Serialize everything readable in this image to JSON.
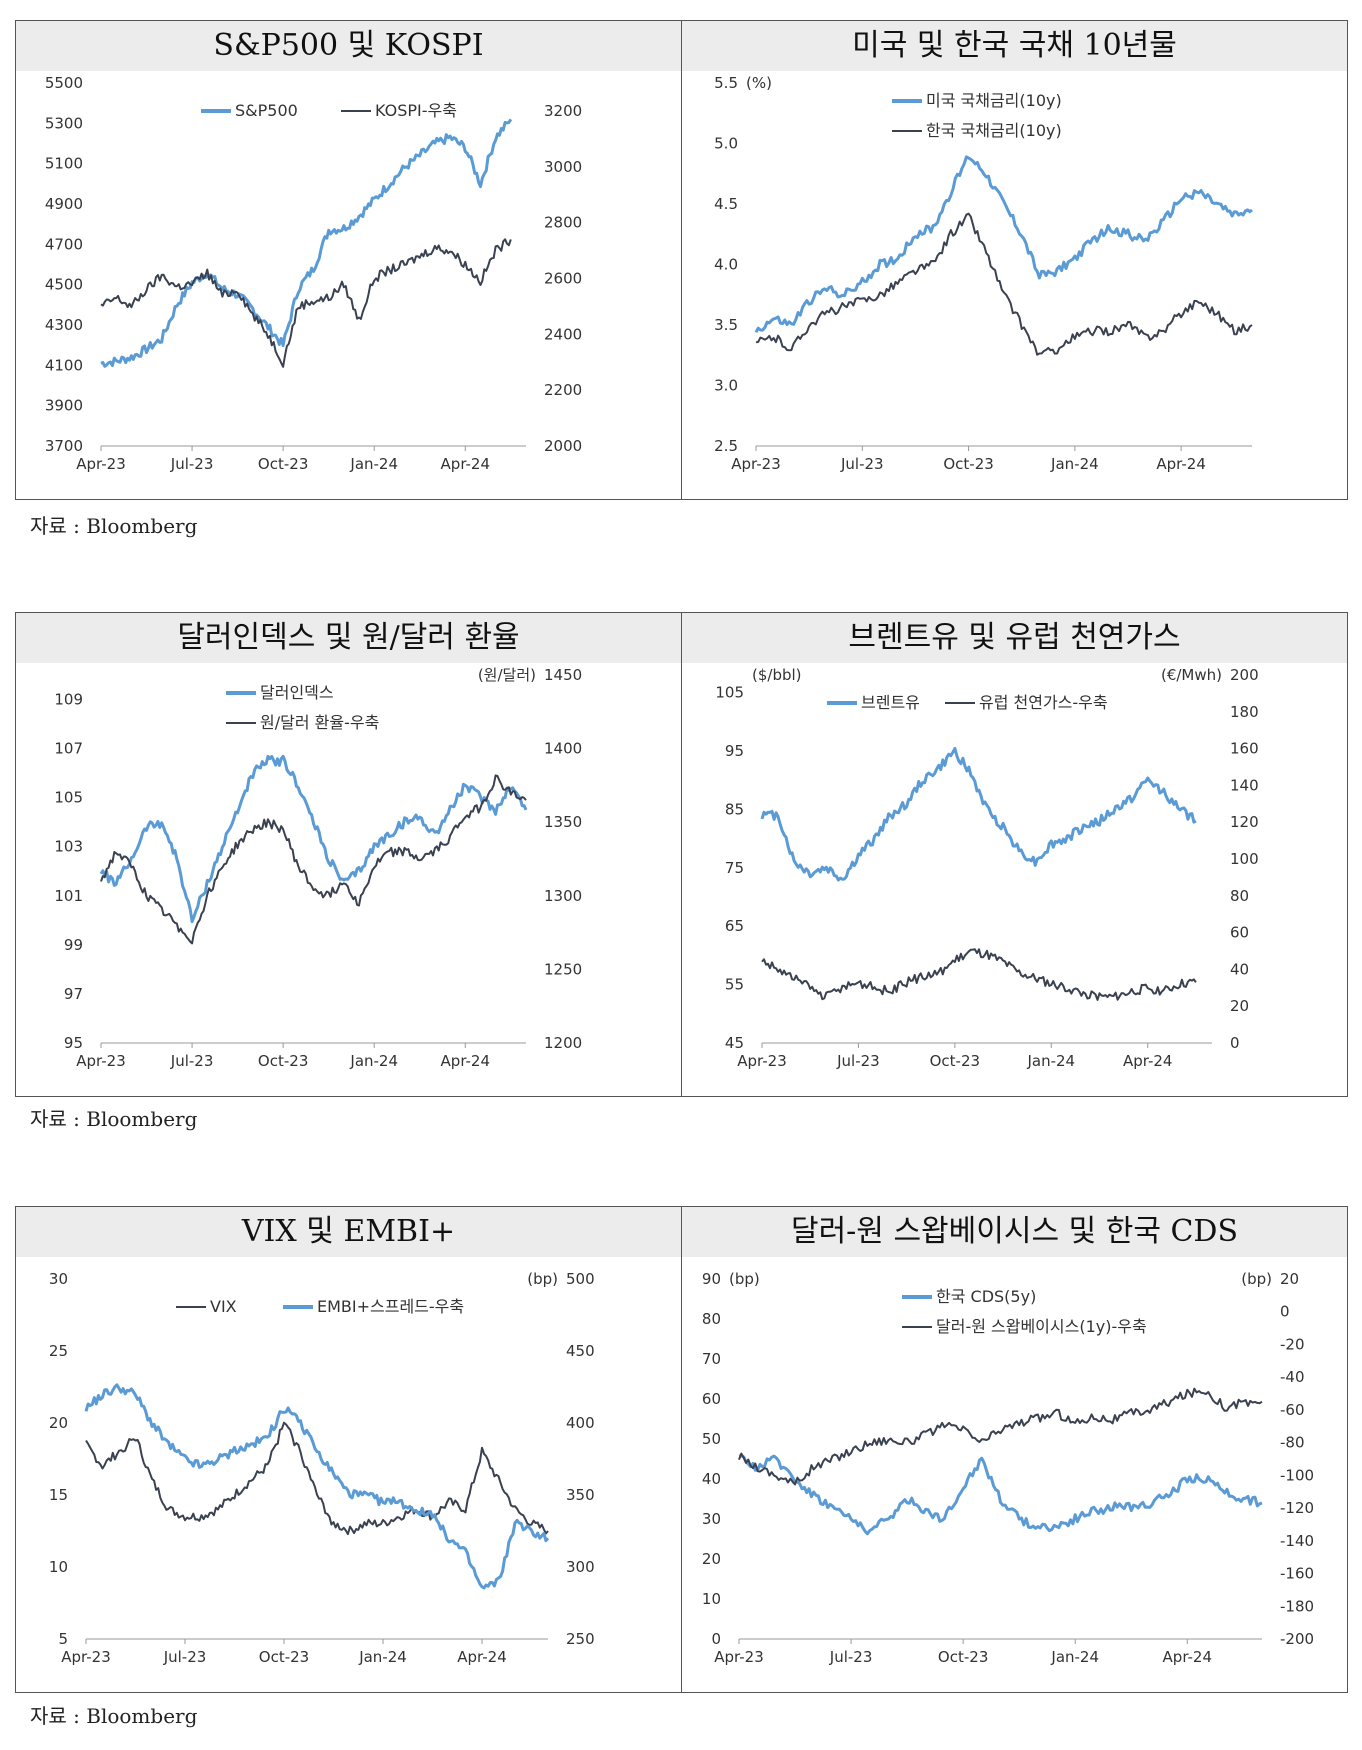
{
  "colors": {
    "blue": "#5b9bd5",
    "dark": "#3a4150",
    "axis": "#999999",
    "text": "#333333"
  },
  "sources": [
    "자료 : Bloomberg",
    "자료 : Bloomberg",
    "자료 : Bloomberg"
  ],
  "chart_data": [
    {
      "type": "line",
      "title": "S&P500 및 KOSPI",
      "x_ticks": [
        "Apr-23",
        "Jul-23",
        "Oct-23",
        "Jan-24",
        "Apr-24"
      ],
      "x_range": [
        0,
        14
      ],
      "left_axis": {
        "ticks": [
          "5500",
          "5300",
          "5100",
          "4900",
          "4700",
          "4500",
          "4300",
          "4100",
          "3900",
          "3700"
        ],
        "range": [
          3700,
          5500
        ],
        "unit": ""
      },
      "right_axis": {
        "ticks": [
          "3200",
          "3000",
          "2800",
          "2600",
          "2400",
          "2200",
          "2000"
        ],
        "range": [
          2000,
          3300
        ],
        "unit": ""
      },
      "legend": [
        {
          "label": "S&P500",
          "color": "blue",
          "axis": "left"
        },
        {
          "label": "KOSPI-우축",
          "color": "dark",
          "axis": "right"
        }
      ],
      "series": [
        {
          "name": "S&P500",
          "axis": "left",
          "color": "blue",
          "x": [
            0,
            0.5,
            1,
            1.5,
            2,
            2.5,
            3,
            3.5,
            4,
            4.5,
            5,
            5.5,
            6,
            6.5,
            7,
            7.5,
            8,
            8.5,
            9,
            9.5,
            10,
            10.5,
            11,
            11.5,
            12,
            12.5,
            13,
            13.5
          ],
          "values": [
            4110,
            4120,
            4140,
            4180,
            4230,
            4400,
            4510,
            4560,
            4480,
            4450,
            4380,
            4290,
            4200,
            4480,
            4580,
            4770,
            4780,
            4840,
            4920,
            5000,
            5080,
            5140,
            5200,
            5230,
            5180,
            5000,
            5230,
            5320
          ]
        },
        {
          "name": "KOSPI",
          "axis": "right",
          "color": "dark",
          "x": [
            0,
            0.5,
            1,
            1.5,
            2,
            2.5,
            3,
            3.5,
            4,
            4.5,
            5,
            5.5,
            6,
            6.5,
            7,
            7.5,
            8,
            8.5,
            9,
            9.5,
            10,
            10.5,
            11,
            11.5,
            12,
            12.5,
            13,
            13.5
          ],
          "values": [
            2500,
            2530,
            2500,
            2560,
            2610,
            2570,
            2580,
            2620,
            2540,
            2560,
            2470,
            2400,
            2300,
            2500,
            2520,
            2530,
            2580,
            2450,
            2600,
            2630,
            2650,
            2680,
            2710,
            2700,
            2650,
            2590,
            2700,
            2740
          ]
        }
      ]
    },
    {
      "type": "line",
      "title": "미국 및 한국 국채 10년물",
      "x_ticks": [
        "Apr-23",
        "Jul-23",
        "Oct-23",
        "Jan-24",
        "Apr-24"
      ],
      "x_range": [
        0,
        14
      ],
      "left_axis": {
        "ticks": [
          "5.5",
          "5.0",
          "4.5",
          "4.0",
          "3.5",
          "3.0",
          "2.5"
        ],
        "range": [
          2.5,
          5.5
        ],
        "unit": "(%)"
      },
      "legend": [
        {
          "label": "미국 국채금리(10y)",
          "color": "blue",
          "axis": "left"
        },
        {
          "label": "한국 국채금리(10y)",
          "color": "dark",
          "axis": "left"
        }
      ],
      "series": [
        {
          "name": "미국 국채금리(10y)",
          "axis": "left",
          "color": "blue",
          "x": [
            0,
            0.5,
            1,
            1.5,
            2,
            2.5,
            3,
            3.5,
            4,
            4.5,
            5,
            5.5,
            6,
            6.5,
            7,
            7.5,
            8,
            8.5,
            9,
            9.5,
            10,
            10.5,
            11,
            11.5,
            12,
            12.5,
            13,
            13.5,
            14
          ],
          "values": [
            3.45,
            3.55,
            3.5,
            3.7,
            3.8,
            3.75,
            3.85,
            4.0,
            4.05,
            4.25,
            4.3,
            4.6,
            4.9,
            4.75,
            4.5,
            4.25,
            3.9,
            3.95,
            4.05,
            4.2,
            4.3,
            4.25,
            4.2,
            4.35,
            4.55,
            4.6,
            4.5,
            4.4,
            4.45
          ]
        },
        {
          "name": "한국 국채금리(10y)",
          "axis": "left",
          "color": "dark",
          "x": [
            0,
            0.5,
            1,
            1.5,
            2,
            2.5,
            3,
            3.5,
            4,
            4.5,
            5,
            5.5,
            6,
            6.5,
            7,
            7.5,
            8,
            8.5,
            9,
            9.5,
            10,
            10.5,
            11,
            11.5,
            12,
            12.5,
            13,
            13.5,
            14
          ],
          "values": [
            3.35,
            3.4,
            3.3,
            3.5,
            3.6,
            3.65,
            3.7,
            3.75,
            3.85,
            3.95,
            4.0,
            4.25,
            4.4,
            4.1,
            3.75,
            3.5,
            3.25,
            3.3,
            3.4,
            3.45,
            3.45,
            3.5,
            3.4,
            3.45,
            3.6,
            3.7,
            3.6,
            3.45,
            3.5
          ]
        }
      ]
    },
    {
      "type": "line",
      "title": "달러인덱스 및 원/달러 환율",
      "x_ticks": [
        "Apr-23",
        "Jul-23",
        "Oct-23",
        "Jan-24",
        "Apr-24"
      ],
      "x_range": [
        0,
        14
      ],
      "left_axis": {
        "ticks": [
          "109",
          "107",
          "105",
          "103",
          "101",
          "99",
          "97",
          "95"
        ],
        "range": [
          95,
          110
        ],
        "unit": ""
      },
      "right_axis": {
        "ticks": [
          "1450",
          "1400",
          "1350",
          "1300",
          "1250",
          "1200"
        ],
        "range": [
          1200,
          1450
        ],
        "unit": "(원/달러)"
      },
      "legend": [
        {
          "label": "달러인덱스",
          "color": "blue",
          "axis": "left"
        },
        {
          "label": "원/달러 환율-우축",
          "color": "dark",
          "axis": "right"
        }
      ],
      "series": [
        {
          "name": "달러인덱스",
          "axis": "left",
          "color": "blue",
          "x": [
            0,
            0.5,
            1,
            1.5,
            2,
            2.5,
            3,
            3.5,
            4,
            4.5,
            5,
            5.5,
            6,
            6.5,
            7,
            7.5,
            8,
            8.5,
            9,
            9.5,
            10,
            10.5,
            11,
            11.5,
            12,
            12.5,
            13,
            13.5,
            14
          ],
          "values": [
            102.0,
            101.5,
            102.5,
            103.8,
            104.0,
            102.5,
            100.0,
            101.5,
            103.0,
            104.5,
            106.0,
            106.5,
            106.5,
            105.5,
            104.0,
            102.5,
            101.5,
            102.0,
            103.0,
            103.5,
            104.0,
            104.2,
            103.5,
            104.5,
            105.5,
            105.0,
            104.5,
            105.5,
            104.5
          ]
        },
        {
          "name": "원/달러 환율",
          "axis": "right",
          "color": "dark",
          "x": [
            0,
            0.5,
            1,
            1.5,
            2,
            2.5,
            3,
            3.5,
            4,
            4.5,
            5,
            5.5,
            6,
            6.5,
            7,
            7.5,
            8,
            8.5,
            9,
            9.5,
            10,
            10.5,
            11,
            11.5,
            12,
            12.5,
            13,
            13.5,
            14
          ],
          "values": [
            1310,
            1330,
            1320,
            1300,
            1290,
            1280,
            1270,
            1300,
            1320,
            1335,
            1345,
            1350,
            1345,
            1320,
            1305,
            1300,
            1310,
            1295,
            1320,
            1330,
            1330,
            1325,
            1330,
            1340,
            1355,
            1360,
            1380,
            1370,
            1365
          ]
        }
      ]
    },
    {
      "type": "line",
      "title": "브렌트유 및 유럽 천연가스",
      "x_ticks": [
        "Apr-23",
        "Jul-23",
        "Oct-23",
        "Jan-24",
        "Apr-24"
      ],
      "x_range": [
        0,
        14
      ],
      "left_axis": {
        "ticks": [
          "105",
          "95",
          "85",
          "75",
          "65",
          "55",
          "45"
        ],
        "range": [
          45,
          108
        ],
        "unit": "($/bbl)"
      },
      "right_axis": {
        "ticks": [
          "200",
          "180",
          "160",
          "140",
          "120",
          "100",
          "80",
          "60",
          "40",
          "20",
          "0"
        ],
        "range": [
          0,
          200
        ],
        "unit": "(€/Mwh)"
      },
      "legend": [
        {
          "label": "브렌트유",
          "color": "blue",
          "axis": "left"
        },
        {
          "label": "유럽 천연가스-우축",
          "color": "dark",
          "axis": "right"
        }
      ],
      "series": [
        {
          "name": "브렌트유",
          "axis": "left",
          "color": "blue",
          "x": [
            0,
            0.5,
            1,
            1.5,
            2,
            2.5,
            3,
            3.5,
            4,
            4.5,
            5,
            5.5,
            6,
            6.5,
            7,
            7.5,
            8,
            8.5,
            9,
            9.5,
            10,
            10.5,
            11,
            11.5,
            12,
            12.5,
            13,
            13.5
          ],
          "values": [
            84,
            84,
            76,
            74,
            75,
            73,
            77,
            80,
            84,
            86,
            90,
            92,
            95,
            91,
            85,
            82,
            78,
            76,
            79,
            80,
            82,
            83,
            85,
            87,
            90,
            88,
            85,
            83
          ]
        },
        {
          "name": "유럽 천연가스",
          "axis": "right",
          "color": "dark",
          "x": [
            0,
            0.5,
            1,
            1.5,
            2,
            2.5,
            3,
            3.5,
            4,
            4.5,
            5,
            5.5,
            6,
            6.5,
            7,
            7.5,
            8,
            8.5,
            9,
            9.5,
            10,
            10.5,
            11,
            11.5,
            12,
            12.5,
            13,
            13.5
          ],
          "values": [
            45,
            40,
            35,
            30,
            25,
            30,
            33,
            30,
            28,
            33,
            36,
            38,
            45,
            50,
            48,
            44,
            38,
            35,
            32,
            30,
            27,
            25,
            25,
            28,
            30,
            28,
            32,
            33
          ]
        }
      ]
    },
    {
      "type": "line",
      "title": "VIX 및 EMBI+",
      "x_ticks": [
        "Apr-23",
        "Jul-23",
        "Oct-23",
        "Jan-24",
        "Apr-24"
      ],
      "x_range": [
        0,
        14
      ],
      "left_axis": {
        "ticks": [
          "30",
          "25",
          "20",
          "15",
          "10",
          "5"
        ],
        "range": [
          5,
          30
        ],
        "unit": ""
      },
      "right_axis": {
        "ticks": [
          "500",
          "450",
          "400",
          "350",
          "300",
          "250"
        ],
        "range": [
          250,
          500
        ],
        "unit": "(bp)"
      },
      "legend": [
        {
          "label": "VIX",
          "color": "dark",
          "axis": "left"
        },
        {
          "label": "EMBI+스프레드-우축",
          "color": "blue",
          "axis": "right"
        }
      ],
      "series": [
        {
          "name": "VIX",
          "axis": "left",
          "color": "dark",
          "x": [
            0,
            0.5,
            1,
            1.5,
            2,
            2.5,
            3,
            3.5,
            4,
            4.5,
            5,
            5.5,
            6,
            6.5,
            7,
            7.5,
            8,
            8.5,
            9,
            9.5,
            10,
            10.5,
            11,
            11.5,
            12,
            12.5,
            13,
            13.5,
            14
          ],
          "values": [
            18.5,
            17,
            18,
            19,
            16,
            14,
            13.5,
            13.5,
            14,
            15,
            16,
            17,
            20,
            18,
            15,
            13,
            12.5,
            13,
            13,
            13.5,
            14,
            13.5,
            14.5,
            14,
            18,
            16,
            14,
            13,
            12.5
          ]
        },
        {
          "name": "EMBI+스프레드",
          "axis": "right",
          "color": "blue",
          "x": [
            0,
            0.5,
            1,
            1.5,
            2,
            2.5,
            3,
            3.5,
            4,
            4.5,
            5,
            5.5,
            6,
            6.5,
            7,
            7.5,
            8,
            8.5,
            9,
            9.5,
            10,
            10.5,
            11,
            11.5,
            12,
            12.5,
            13,
            13.5,
            14
          ],
          "values": [
            410,
            420,
            425,
            420,
            400,
            385,
            375,
            370,
            375,
            380,
            385,
            390,
            410,
            400,
            380,
            365,
            350,
            350,
            345,
            345,
            340,
            335,
            320,
            310,
            285,
            290,
            330,
            325,
            320
          ]
        }
      ]
    },
    {
      "type": "line",
      "title": "달러-원 스왑베이시스 및 한국 CDS",
      "x_ticks": [
        "Apr-23",
        "Jul-23",
        "Oct-23",
        "Jan-24",
        "Apr-24"
      ],
      "x_range": [
        0,
        14
      ],
      "left_axis": {
        "ticks": [
          "90",
          "80",
          "70",
          "60",
          "50",
          "40",
          "30",
          "20",
          "10",
          "0"
        ],
        "range": [
          0,
          90
        ],
        "unit": "(bp)"
      },
      "right_axis": {
        "ticks": [
          "20",
          "0",
          "-20",
          "-40",
          "-60",
          "-80",
          "-100",
          "-120",
          "-140",
          "-160",
          "-180",
          "-200"
        ],
        "range": [
          -200,
          20
        ],
        "unit": "(bp)"
      },
      "legend": [
        {
          "label": "한국 CDS(5y)",
          "color": "blue",
          "axis": "left"
        },
        {
          "label": "달러-원 스왑베이시스(1y)-우축",
          "color": "dark",
          "axis": "right"
        }
      ],
      "series": [
        {
          "name": "한국 CDS(5y)",
          "axis": "left",
          "color": "blue",
          "x": [
            0,
            0.5,
            1,
            1.5,
            2,
            2.5,
            3,
            3.5,
            4,
            4.5,
            5,
            5.5,
            6,
            6.5,
            7,
            7.5,
            8,
            8.5,
            9,
            9.5,
            10,
            10.5,
            11,
            11.5,
            12,
            12.5,
            13,
            13.5,
            14
          ],
          "values": [
            45,
            43,
            45,
            40,
            36,
            33,
            30,
            27,
            30,
            35,
            32,
            30,
            38,
            45,
            35,
            30,
            28,
            28,
            30,
            32,
            33,
            33,
            34,
            36,
            40,
            40,
            37,
            35,
            34
          ]
        },
        {
          "name": "달러-원 스왑베이시스(1y)",
          "axis": "right",
          "color": "dark",
          "x": [
            0,
            0.5,
            1,
            1.5,
            2,
            2.5,
            3,
            3.5,
            4,
            4.5,
            5,
            5.5,
            6,
            6.5,
            7,
            7.5,
            8,
            8.5,
            9,
            9.5,
            10,
            10.5,
            11,
            11.5,
            12,
            12.5,
            13,
            13.5,
            14
          ],
          "values": [
            -88,
            -95,
            -100,
            -105,
            -95,
            -90,
            -85,
            -80,
            -78,
            -80,
            -75,
            -70,
            -72,
            -80,
            -72,
            -68,
            -65,
            -62,
            -68,
            -64,
            -66,
            -62,
            -60,
            -55,
            -50,
            -48,
            -58,
            -56,
            -55
          ]
        }
      ]
    }
  ]
}
